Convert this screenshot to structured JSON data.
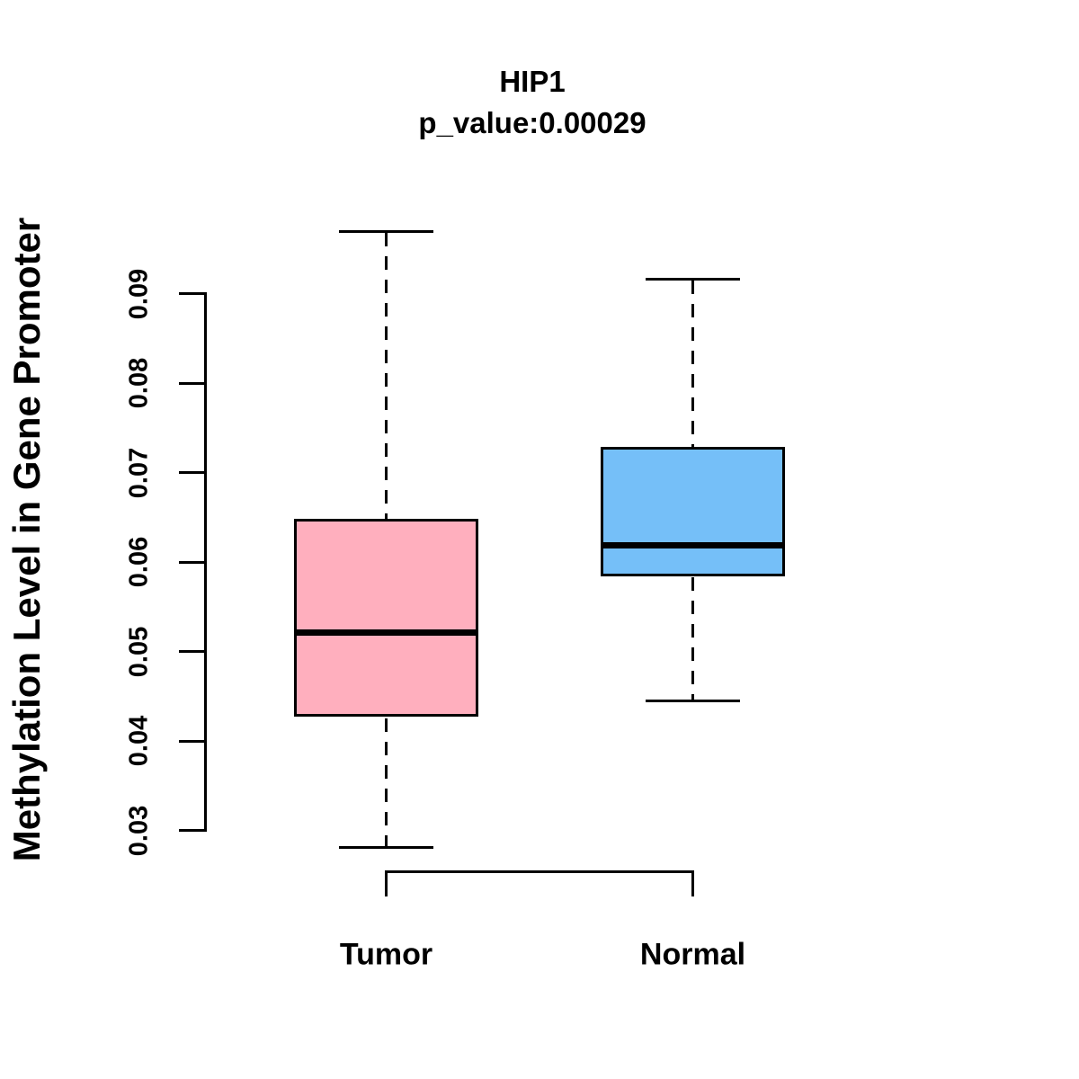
{
  "chart_data": {
    "type": "boxplot",
    "title": "HIP1",
    "subtitle": "p_value:0.00029",
    "ylabel": "Methylation Level in Gene Promoter",
    "xlabel": "",
    "categories": [
      "Tumor",
      "Normal"
    ],
    "ytick_labels": [
      "0.03",
      "0.04",
      "0.05",
      "0.06",
      "0.07",
      "0.08",
      "0.09"
    ],
    "yticks": [
      0.03,
      0.04,
      0.05,
      0.06,
      0.07,
      0.08,
      0.09
    ],
    "ylim": [
      0.028,
      0.097
    ],
    "grid": false,
    "legend": "none",
    "line_color": "#000000",
    "background_color": "#ffffff",
    "series": [
      {
        "name": "Tumor",
        "fill_color": "#FFAFBE",
        "lower_whisker": 0.0281,
        "q1": 0.0427,
        "median": 0.0521,
        "q3": 0.0648,
        "upper_whisker": 0.0969
      },
      {
        "name": "Normal",
        "fill_color": "#75BFF8",
        "lower_whisker": 0.0445,
        "q1": 0.0584,
        "median": 0.0619,
        "q3": 0.0729,
        "upper_whisker": 0.0916
      }
    ],
    "significance_bracket": {
      "connects": [
        "Tumor",
        "Normal"
      ]
    }
  }
}
